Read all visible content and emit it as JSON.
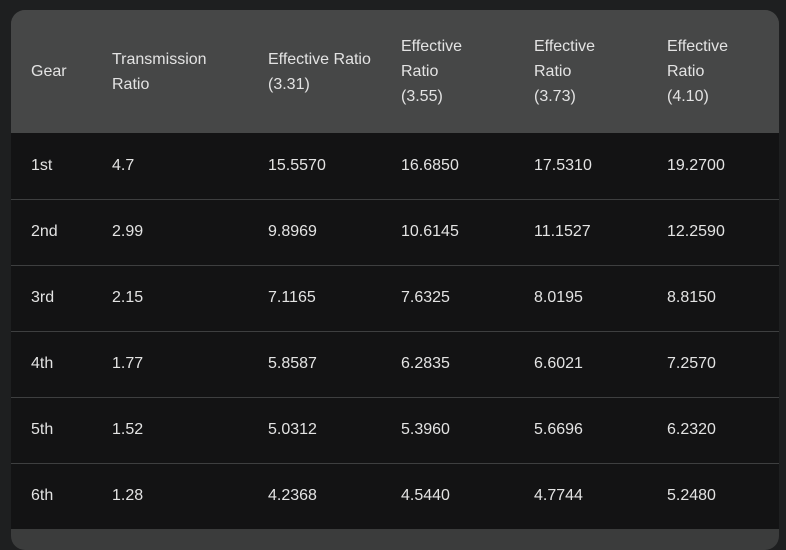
{
  "table": {
    "header": [
      "Gear",
      "Transmission Ratio",
      "Effective Ratio (3.31)",
      "Effective Ratio (3.55)",
      "Effective Ratio (3.73)",
      "Effective Ratio (4.10)"
    ],
    "rows": [
      [
        "1st",
        "4.7",
        "15.5570",
        "16.6850",
        "17.5310",
        "19.2700"
      ],
      [
        "2nd",
        "2.99",
        "9.8969",
        "10.6145",
        "11.1527",
        "12.2590"
      ],
      [
        "3rd",
        "2.15",
        "7.1165",
        "7.6325",
        "8.0195",
        "8.8150"
      ],
      [
        "4th",
        "1.77",
        "5.8587",
        "6.2835",
        "6.6021",
        "7.2570"
      ],
      [
        "5th",
        "1.52",
        "5.0312",
        "5.3960",
        "5.6696",
        "6.2320"
      ],
      [
        "6th",
        "1.28",
        "4.2368",
        "4.5440",
        "4.7744",
        "5.2480"
      ]
    ]
  }
}
